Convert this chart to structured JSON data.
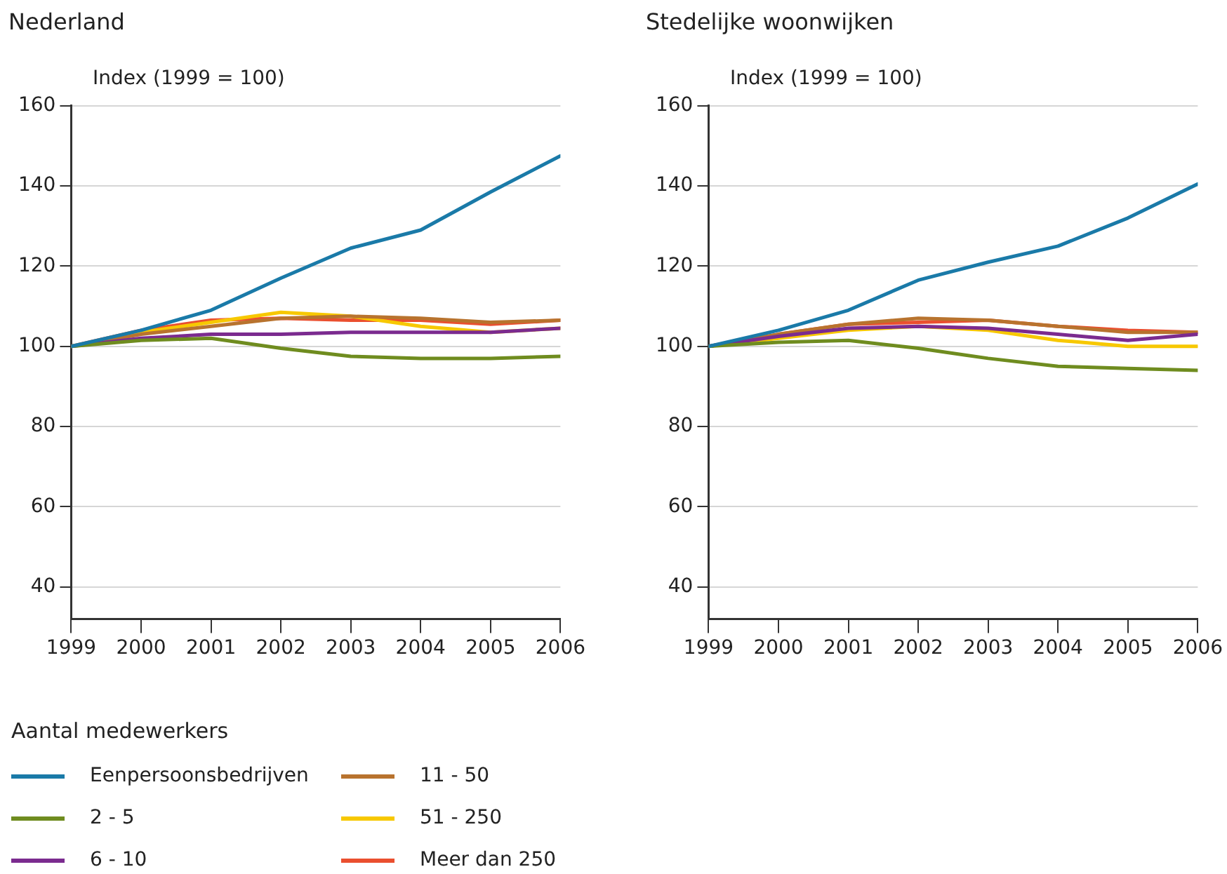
{
  "chart_data": [
    {
      "type": "line",
      "title": "Nederland",
      "ylabel": "Index (1999 = 100)",
      "legend_title": "Aantal medewerkers",
      "x": [
        1999,
        2000,
        2001,
        2002,
        2003,
        2004,
        2005,
        2006
      ],
      "xlim": [
        1999,
        2006
      ],
      "xticks": [
        1999,
        2000,
        2001,
        2002,
        2003,
        2004,
        2005,
        2006
      ],
      "ylim": [
        32,
        160
      ],
      "yticks": [
        40,
        60,
        80,
        100,
        120,
        140,
        160
      ],
      "grid": "y",
      "legend": "bottom",
      "marker": "none",
      "line_style": "solid",
      "series": [
        {
          "name": "Eenpersoonsbedrijven",
          "color": "#1a7aa8",
          "values": [
            100,
            104,
            109,
            117,
            124.5,
            129,
            138.5,
            147.5
          ]
        },
        {
          "name": "2 - 5",
          "color": "#6f8c1f",
          "values": [
            100,
            101.5,
            102,
            99.5,
            97.5,
            97,
            97,
            97.5
          ]
        },
        {
          "name": "6 - 10",
          "color": "#7b2b8f",
          "values": [
            100,
            102,
            103,
            103,
            103.5,
            103.5,
            103.5,
            104.5
          ]
        },
        {
          "name": "11 - 50",
          "color": "#b8732e",
          "values": [
            100,
            103,
            105,
            107,
            107.5,
            107,
            106,
            106.5
          ]
        },
        {
          "name": "51 - 250",
          "color": "#f7c800",
          "values": [
            100,
            103.5,
            106,
            108.5,
            107.5,
            105,
            103.5,
            104.5
          ]
        },
        {
          "name": "Meer dan 250",
          "color": "#ea4f2f",
          "values": [
            100,
            104,
            106.5,
            107,
            106.5,
            106.5,
            105.5,
            106.5
          ]
        }
      ]
    },
    {
      "type": "line",
      "title": "Stedelijke woonwijken",
      "ylabel": "Index (1999 = 100)",
      "x": [
        1999,
        2000,
        2001,
        2002,
        2003,
        2004,
        2005,
        2006
      ],
      "xlim": [
        1999,
        2006
      ],
      "xticks": [
        1999,
        2000,
        2001,
        2002,
        2003,
        2004,
        2005,
        2006
      ],
      "ylim": [
        32,
        160
      ],
      "yticks": [
        40,
        60,
        80,
        100,
        120,
        140,
        160
      ],
      "grid": "y",
      "marker": "none",
      "line_style": "solid",
      "series": [
        {
          "color": "#1a7aa8",
          "values": [
            100,
            104,
            109,
            116.5,
            121,
            125,
            132,
            140.5
          ]
        },
        {
          "color": "#6f8c1f",
          "values": [
            100,
            101,
            101.5,
            99.5,
            97,
            95,
            94.5,
            94
          ]
        },
        {
          "color": "#7b2b8f",
          "values": [
            100,
            102.5,
            104.5,
            105,
            104.5,
            103,
            101.5,
            103
          ]
        },
        {
          "color": "#b8732e",
          "values": [
            100,
            103,
            105.5,
            107,
            106.5,
            105,
            103.5,
            103.5
          ]
        },
        {
          "color": "#f7c800",
          "values": [
            100,
            102,
            104,
            105,
            104,
            101.5,
            100,
            100
          ]
        },
        {
          "color": "#ea4f2f",
          "values": [
            100,
            103,
            105.5,
            106,
            106.5,
            105,
            104,
            103.5
          ]
        }
      ]
    }
  ]
}
